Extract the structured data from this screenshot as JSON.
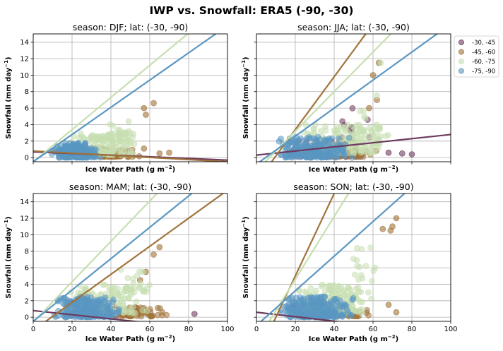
{
  "figure": {
    "title": "IWP vs. Snowfall: ERA5  (-90, -30)"
  },
  "colors": {
    "-30, -45": "#6e3a5e",
    "-45, -60": "#a0733a",
    "-60, -75": "#c7dfb0",
    "-75, -90": "#5a97c2"
  },
  "legend": {
    "placement": "outside-right",
    "entries": [
      "-30, -45",
      "-45, -60",
      "-60, -75",
      "-75, -90"
    ]
  },
  "chart_data": [
    {
      "type": "scatter",
      "title": "season: DJF; lat: (-30, -90)",
      "xlabel": "Ice Water Path",
      "ylabel": "Snowfall",
      "xunit": "g m",
      "yunit": "mm day",
      "xlim": [
        0,
        100
      ],
      "ylim": [
        -0.5,
        15
      ],
      "xticks": [
        0,
        20,
        40,
        60,
        80,
        100
      ],
      "yticks": [
        0,
        2,
        4,
        6,
        8,
        10,
        12,
        14
      ],
      "show_xticklabels": false,
      "show_yticklabels": true,
      "grid": true,
      "series": [
        {
          "name": "-30, -45",
          "clusters": [
            {
              "x": [
                15,
                45
              ],
              "y": [
                0.1,
                1.2
              ],
              "n": 50
            }
          ],
          "points": [
            [
              18,
              0.9
            ],
            [
              30,
              1.0
            ]
          ],
          "fit": {
            "slope": -0.01,
            "intercept": 0.7
          }
        },
        {
          "name": "-45, -60",
          "clusters": [
            {
              "x": [
                30,
                55
              ],
              "y": [
                0.1,
                1.0
              ],
              "n": 70
            }
          ],
          "points": [
            [
              57,
              6.0
            ],
            [
              58,
              5.2
            ],
            [
              62,
              6.6
            ],
            [
              65,
              0.5
            ],
            [
              70,
              0.6
            ],
            [
              57,
              1.1
            ]
          ],
          "fit": {
            "slope": -0.013,
            "intercept": 0.8
          }
        },
        {
          "name": "-60, -75",
          "clusters": [
            {
              "x": [
                15,
                55
              ],
              "y": [
                0.3,
                3.0
              ],
              "n": 140
            },
            {
              "x": [
                35,
                55
              ],
              "y": [
                2.0,
                5.5
              ],
              "n": 25
            }
          ],
          "points": [],
          "fit": {
            "slope": 0.195,
            "intercept": -0.5
          }
        },
        {
          "name": "-75, -90",
          "clusters": [
            {
              "x": [
                8,
                35
              ],
              "y": [
                0.0,
                1.8
              ],
              "n": 200
            }
          ],
          "points": [],
          "fit": {
            "slope": 0.165,
            "intercept": -0.5
          }
        }
      ]
    },
    {
      "type": "scatter",
      "title": "season: JJA; lat: (-30, -90)",
      "xlabel": "Ice Water Path",
      "ylabel": "Snowfall",
      "xunit": "g m",
      "yunit": "mm day",
      "xlim": [
        0,
        100
      ],
      "ylim": [
        -0.5,
        15
      ],
      "xticks": [
        0,
        20,
        40,
        60,
        80,
        100
      ],
      "yticks": [
        0,
        2,
        4,
        6,
        8,
        10,
        12,
        14
      ],
      "show_xticklabels": false,
      "show_yticklabels": false,
      "grid": true,
      "series": [
        {
          "name": "-30, -45",
          "clusters": [
            {
              "x": [
                10,
                65
              ],
              "y": [
                0.1,
                2.0
              ],
              "n": 70
            },
            {
              "x": [
                35,
                60
              ],
              "y": [
                2.0,
                6.0
              ],
              "n": 12
            }
          ],
          "points": [
            [
              75,
              0.5
            ],
            [
              80,
              0.4
            ],
            [
              68,
              0.6
            ]
          ],
          "fit": {
            "slope": 0.025,
            "intercept": 0.3
          }
        },
        {
          "name": "-45, -60",
          "clusters": [
            {
              "x": [
                25,
                62
              ],
              "y": [
                0.1,
                1.0
              ],
              "n": 80
            }
          ],
          "points": [
            [
              60,
              10.0
            ],
            [
              63,
              11.5
            ],
            [
              62,
              7.0
            ],
            [
              58,
              6.0
            ]
          ],
          "fit": {
            "slope": 0.32,
            "intercept": -3.0
          }
        },
        {
          "name": "-60, -75",
          "clusters": [
            {
              "x": [
                20,
                70
              ],
              "y": [
                0.5,
                4.0
              ],
              "n": 150
            },
            {
              "x": [
                50,
                70
              ],
              "y": [
                2.0,
                6.0
              ],
              "n": 20
            }
          ],
          "points": [
            [
              64,
              11.5
            ],
            [
              62,
              7.5
            ]
          ],
          "fit": {
            "slope": 0.24,
            "intercept": -1.6
          }
        },
        {
          "name": "-75, -90",
          "clusters": [
            {
              "x": [
                10,
                50
              ],
              "y": [
                0.0,
                2.5
              ],
              "n": 200
            }
          ],
          "points": [],
          "fit": {
            "slope": 0.17,
            "intercept": -0.8
          }
        }
      ]
    },
    {
      "type": "scatter",
      "title": "season: MAM; lat: (-30, -90)",
      "xlabel": "Ice Water Path",
      "ylabel": "Snowfall",
      "xunit": "g m",
      "yunit": "mm day",
      "xlim": [
        0,
        100
      ],
      "ylim": [
        -0.5,
        15
      ],
      "xticks": [
        0,
        20,
        40,
        60,
        80,
        100
      ],
      "yticks": [
        0,
        2,
        4,
        6,
        8,
        10,
        12,
        14
      ],
      "show_xticklabels": true,
      "show_yticklabels": true,
      "grid": true,
      "series": [
        {
          "name": "-30, -45",
          "clusters": [
            {
              "x": [
                15,
                45
              ],
              "y": [
                0.1,
                1.5
              ],
              "n": 40
            }
          ],
          "points": [
            [
              83,
              0.4
            ],
            [
              20,
              1.8
            ]
          ],
          "fit": {
            "slope": -0.025,
            "intercept": 0.8
          }
        },
        {
          "name": "-45, -60",
          "clusters": [
            {
              "x": [
                30,
                70
              ],
              "y": [
                0.1,
                1.2
              ],
              "n": 80
            }
          ],
          "points": [
            [
              62,
              7.6
            ],
            [
              65,
              8.5
            ],
            [
              58,
              5.5
            ],
            [
              55,
              4.5
            ]
          ],
          "fit": {
            "slope": 0.17,
            "intercept": -1.6
          }
        },
        {
          "name": "-60, -75",
          "clusters": [
            {
              "x": [
                15,
                60
              ],
              "y": [
                0.5,
                4.0
              ],
              "n": 150
            },
            {
              "x": [
                40,
                62
              ],
              "y": [
                3.0,
                6.5
              ],
              "n": 20
            }
          ],
          "points": [],
          "fit": {
            "slope": 0.245,
            "intercept": -0.6
          }
        },
        {
          "name": "-75, -90",
          "clusters": [
            {
              "x": [
                10,
                45
              ],
              "y": [
                0.0,
                2.5
              ],
              "n": 220
            }
          ],
          "points": [],
          "fit": {
            "slope": 0.19,
            "intercept": -0.5
          }
        }
      ]
    },
    {
      "type": "scatter",
      "title": "season: SON; lat: (-30, -90)",
      "xlabel": "Ice Water Path",
      "ylabel": "Snowfall",
      "xunit": "g m",
      "yunit": "mm day",
      "xlim": [
        0,
        100
      ],
      "ylim": [
        -0.5,
        15
      ],
      "xticks": [
        0,
        20,
        40,
        60,
        80,
        100
      ],
      "yticks": [
        0,
        2,
        4,
        6,
        8,
        10,
        12,
        14
      ],
      "show_xticklabels": true,
      "show_yticklabels": false,
      "grid": true,
      "series": [
        {
          "name": "-30, -45",
          "clusters": [
            {
              "x": [
                15,
                45
              ],
              "y": [
                0.1,
                1.5
              ],
              "n": 40
            }
          ],
          "points": [
            [
              20,
              1.5
            ],
            [
              18,
              1.0
            ]
          ],
          "fit": {
            "slope": -0.027,
            "intercept": 0.6
          }
        },
        {
          "name": "-45, -60",
          "clusters": [
            {
              "x": [
                25,
                62
              ],
              "y": [
                0.1,
                1.0
              ],
              "n": 60
            }
          ],
          "points": [
            [
              72,
              12.0
            ],
            [
              70,
              11.0
            ],
            [
              69,
              10.5
            ],
            [
              65,
              10.7
            ],
            [
              68,
              1.5
            ],
            [
              72,
              0.6
            ]
          ],
          "fit": {
            "slope": 0.5,
            "intercept": -5.0
          }
        },
        {
          "name": "-60, -75",
          "clusters": [
            {
              "x": [
                20,
                60
              ],
              "y": [
                0.5,
                4.0
              ],
              "n": 150
            },
            {
              "x": [
                45,
                65
              ],
              "y": [
                3.0,
                8.5
              ],
              "n": 20
            }
          ],
          "points": [],
          "fit": {
            "slope": 0.38,
            "intercept": -3.0
          }
        },
        {
          "name": "-75, -90",
          "clusters": [
            {
              "x": [
                10,
                50
              ],
              "y": [
                0.0,
                2.5
              ],
              "n": 220
            }
          ],
          "points": [],
          "fit": {
            "slope": 0.21,
            "intercept": -1.0
          }
        }
      ]
    }
  ]
}
